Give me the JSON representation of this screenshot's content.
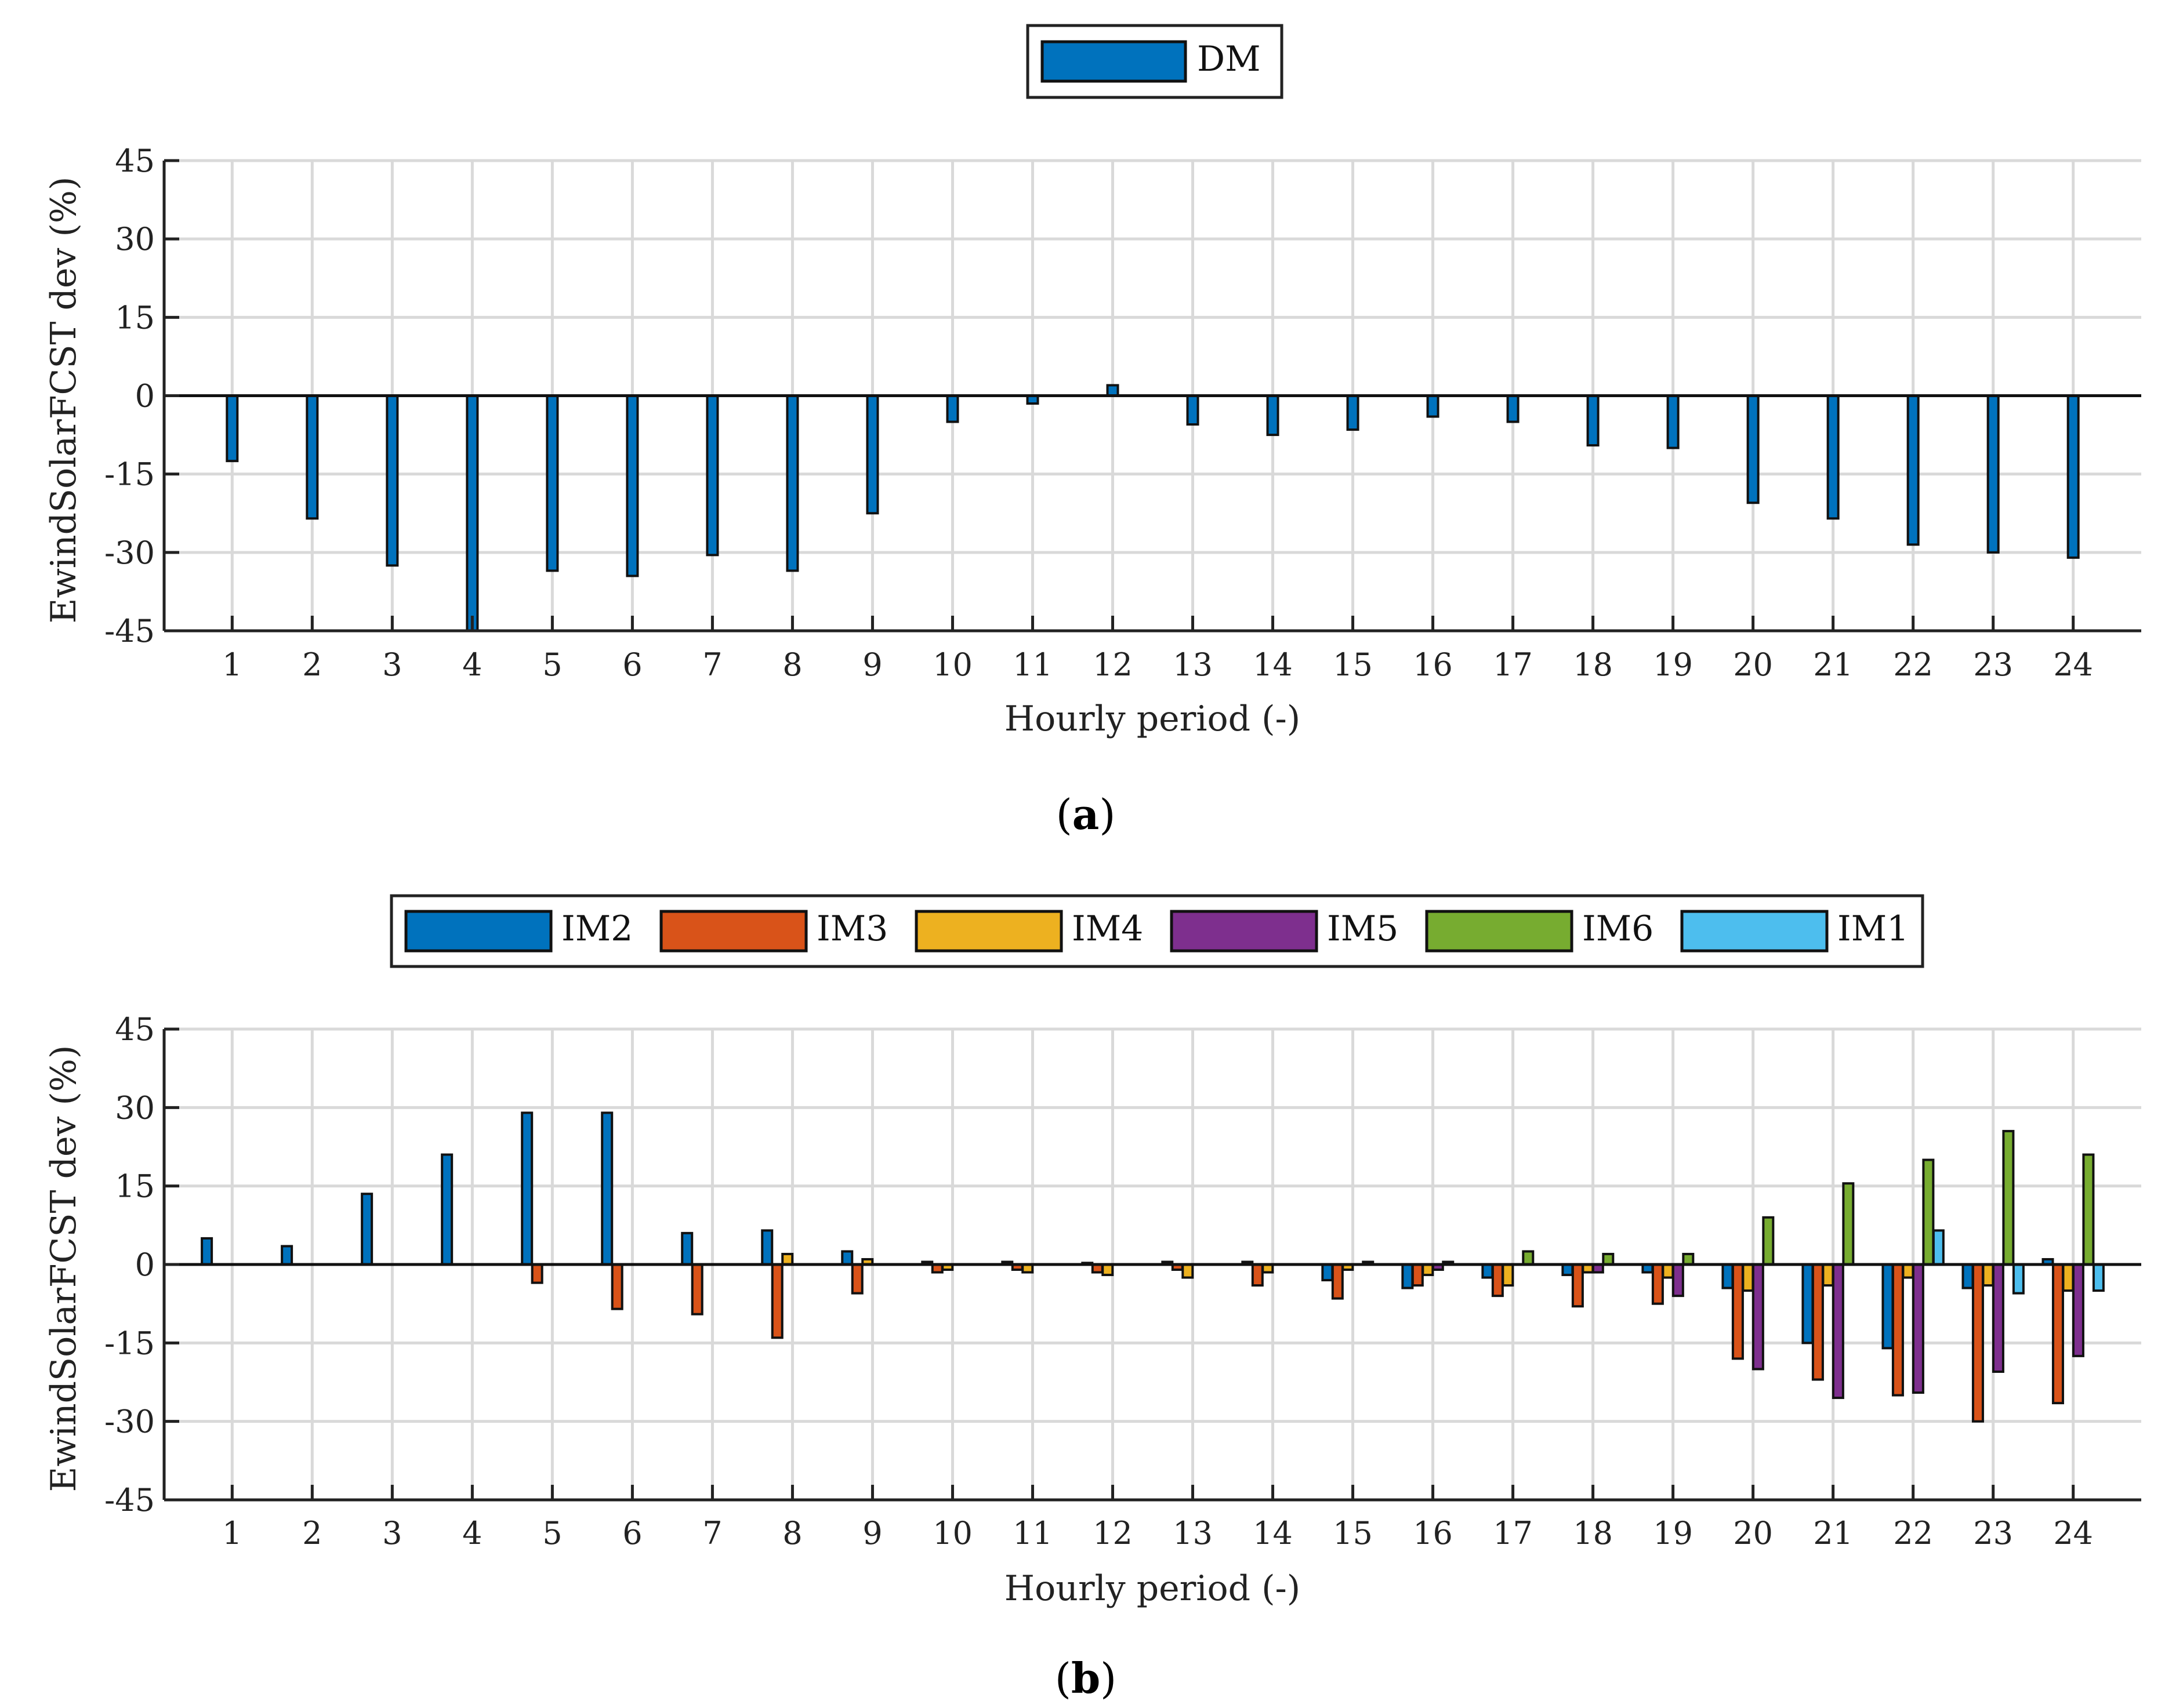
{
  "chart_data": [
    {
      "type": "bar",
      "panel": "a",
      "caption_letter": "a",
      "xlabel": "Hourly period (-)",
      "ylabel": "EwindSolarFCST dev (%)",
      "ylim": [
        -45,
        45
      ],
      "yticks": [
        "45",
        "30",
        "15",
        "0",
        "-15",
        "-30",
        "-45"
      ],
      "categories": [
        "1",
        "2",
        "3",
        "4",
        "5",
        "6",
        "7",
        "8",
        "9",
        "10",
        "11",
        "12",
        "13",
        "14",
        "15",
        "16",
        "17",
        "18",
        "19",
        "20",
        "21",
        "22",
        "23",
        "24"
      ],
      "grid": true,
      "legend_position": "top-center",
      "series": [
        {
          "name": "DM",
          "color": "#0072BD",
          "values": [
            -12.5,
            -23.5,
            -32.5,
            -45.0,
            -33.5,
            -34.5,
            -30.5,
            -33.5,
            -22.5,
            -5.0,
            -1.5,
            2.0,
            -5.5,
            -7.5,
            -6.5,
            -4.0,
            -5.0,
            -9.5,
            -10.0,
            -20.5,
            -23.5,
            -28.5,
            -30.0,
            -31.0
          ]
        }
      ]
    },
    {
      "type": "bar",
      "panel": "b",
      "caption_letter": "b",
      "xlabel": "Hourly period (-)",
      "ylabel": "EwindSolarFCST dev (%)",
      "ylim": [
        -45,
        45
      ],
      "yticks": [
        "45",
        "30",
        "15",
        "0",
        "-15",
        "-30",
        "-45"
      ],
      "categories": [
        "1",
        "2",
        "3",
        "4",
        "5",
        "6",
        "7",
        "8",
        "9",
        "10",
        "11",
        "12",
        "13",
        "14",
        "15",
        "16",
        "17",
        "18",
        "19",
        "20",
        "21",
        "22",
        "23",
        "24"
      ],
      "grid": true,
      "legend_position": "top-center",
      "series": [
        {
          "name": "IM2",
          "color": "#0072BD",
          "values": [
            5.0,
            3.5,
            13.5,
            21.0,
            29.0,
            29.0,
            6.0,
            6.5,
            2.5,
            0.5,
            0.5,
            0.3,
            0.5,
            0.5,
            -3.0,
            -4.5,
            -2.5,
            -2.0,
            -1.5,
            -4.5,
            -15.0,
            -16.0,
            -4.5,
            1.0
          ]
        },
        {
          "name": "IM3",
          "color": "#D95319",
          "values": [
            0,
            0,
            0,
            0,
            -3.5,
            -8.5,
            -9.5,
            -14.0,
            -5.5,
            -1.5,
            -1.0,
            -1.5,
            -1.0,
            -4.0,
            -6.5,
            -4.0,
            -6.0,
            -8.0,
            -7.5,
            -18.0,
            -22.0,
            -25.0,
            -30.0,
            -26.5
          ]
        },
        {
          "name": "IM4",
          "color": "#EDB120",
          "values": [
            0,
            0,
            0,
            0,
            0,
            0,
            0,
            2.0,
            1.0,
            -1.0,
            -1.5,
            -2.0,
            -2.5,
            -1.5,
            -1.0,
            -2.0,
            -4.0,
            -1.5,
            -2.5,
            -5.0,
            -4.0,
            -2.5,
            -4.0,
            -5.0
          ]
        },
        {
          "name": "IM5",
          "color": "#7E2F8E",
          "values": [
            0,
            0,
            0,
            0,
            0,
            0,
            0,
            0,
            0,
            0,
            0,
            0,
            0,
            0,
            0,
            -1.0,
            0,
            -1.5,
            -6.0,
            -20.0,
            -25.5,
            -24.5,
            -20.5,
            -17.5
          ]
        },
        {
          "name": "IM6",
          "color": "#77AC30",
          "values": [
            0,
            0,
            0,
            0,
            0,
            0,
            0,
            0,
            0,
            0,
            0,
            0,
            0,
            0,
            0.5,
            0.5,
            2.5,
            2.0,
            2.0,
            9.0,
            15.5,
            20.0,
            25.5,
            21.0
          ]
        },
        {
          "name": "IM1",
          "color": "#4DBEEE",
          "values": [
            0,
            0,
            0,
            0,
            0,
            0,
            0,
            0,
            0,
            0,
            0,
            0,
            0,
            0,
            0,
            0,
            0,
            0,
            0,
            0,
            0,
            6.5,
            -5.5,
            -5.0
          ]
        }
      ]
    }
  ]
}
